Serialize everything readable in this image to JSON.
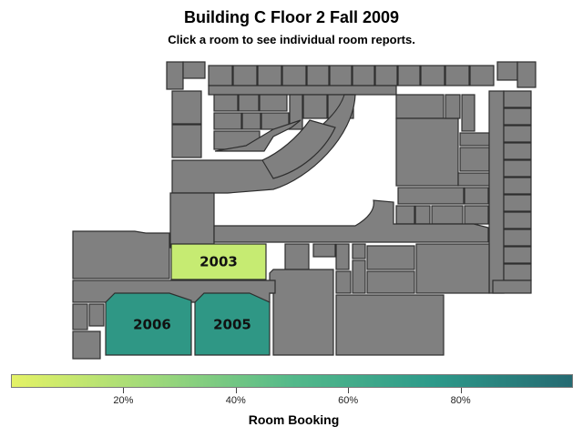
{
  "title": "Building C Floor 2 Fall 2009",
  "subtitle": "Click a room to see individual room reports.",
  "legend": {
    "title": "Room Booking",
    "colors": [
      "#e4f266",
      "#9fd97a",
      "#53b98a",
      "#2d9a8a",
      "#256a72"
    ],
    "ticks": [
      {
        "value": 0.2,
        "label": "20%"
      },
      {
        "value": 0.4,
        "label": "40%"
      },
      {
        "value": 0.6,
        "label": "60%"
      },
      {
        "value": 0.8,
        "label": "80%"
      }
    ]
  },
  "rooms": [
    {
      "id": "2003",
      "label": "2003",
      "color": "#c6eb72"
    },
    {
      "id": "2006",
      "label": "2006",
      "color": "#2f9785"
    },
    {
      "id": "2005",
      "label": "2005",
      "color": "#2f9785"
    }
  ]
}
